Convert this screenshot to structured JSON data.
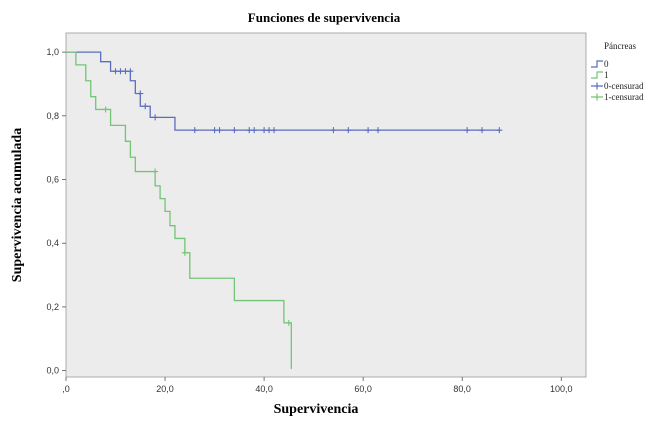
{
  "chart_data": {
    "type": "line",
    "subtype": "kaplan-meier-step",
    "title": "Funciones de supervivencia",
    "xlabel": "Supervivencia",
    "ylabel": "Supervivencia acumulada",
    "xlim": [
      0,
      105
    ],
    "ylim": [
      -0.02,
      1.06
    ],
    "x_ticks": [
      0,
      20,
      40,
      60,
      80,
      100
    ],
    "x_tick_labels": [
      ",0",
      "20,0",
      "40,0",
      "60,0",
      "80,0",
      "100,0"
    ],
    "y_ticks": [
      0,
      0.2,
      0.4,
      0.6,
      0.8,
      1.0
    ],
    "y_tick_labels": [
      "0,0",
      "0,2",
      "0,4",
      "0,6",
      "0,8",
      "1,0"
    ],
    "grid": false,
    "legend_title": "Páncreas",
    "legend_position": "right",
    "plot_background": "#ececec",
    "series": [
      {
        "name": "0",
        "color": "#5b6dbf",
        "steps": [
          [
            0,
            1.0
          ],
          [
            7,
            0.97
          ],
          [
            9,
            0.94
          ],
          [
            13,
            0.91
          ],
          [
            14,
            0.87
          ],
          [
            15,
            0.83
          ],
          [
            17,
            0.795
          ],
          [
            22,
            0.755
          ],
          [
            87.5,
            0.755
          ]
        ]
      },
      {
        "name": "1",
        "color": "#74c476",
        "steps": [
          [
            0,
            1.0
          ],
          [
            2,
            0.96
          ],
          [
            4,
            0.91
          ],
          [
            5,
            0.86
          ],
          [
            6,
            0.82
          ],
          [
            9,
            0.77
          ],
          [
            12,
            0.72
          ],
          [
            13,
            0.67
          ],
          [
            14,
            0.625
          ],
          [
            18,
            0.58
          ],
          [
            19,
            0.54
          ],
          [
            20,
            0.5
          ],
          [
            21,
            0.455
          ],
          [
            22,
            0.415
          ],
          [
            24,
            0.37
          ],
          [
            25,
            0.29
          ],
          [
            34,
            0.22
          ],
          [
            44,
            0.15
          ],
          [
            45.5,
            0.005
          ]
        ]
      }
    ],
    "censored_series": [
      {
        "name": "0-censurad",
        "color": "#5b6dbf",
        "points": [
          [
            10,
            0.94
          ],
          [
            11,
            0.94
          ],
          [
            12,
            0.94
          ],
          [
            13,
            0.94
          ],
          [
            15,
            0.87
          ],
          [
            16,
            0.83
          ],
          [
            18,
            0.795
          ],
          [
            26,
            0.755
          ],
          [
            30,
            0.755
          ],
          [
            31,
            0.755
          ],
          [
            34,
            0.755
          ],
          [
            37,
            0.755
          ],
          [
            38,
            0.755
          ],
          [
            40,
            0.755
          ],
          [
            41,
            0.755
          ],
          [
            42,
            0.755
          ],
          [
            54,
            0.755
          ],
          [
            57,
            0.755
          ],
          [
            61,
            0.755
          ],
          [
            63,
            0.755
          ],
          [
            81,
            0.755
          ],
          [
            84,
            0.755
          ],
          [
            87.5,
            0.755
          ]
        ]
      },
      {
        "name": "1-censurad",
        "color": "#74c476",
        "points": [
          [
            8,
            0.82
          ],
          [
            18,
            0.625
          ],
          [
            24,
            0.37
          ],
          [
            45,
            0.15
          ]
        ]
      }
    ]
  }
}
